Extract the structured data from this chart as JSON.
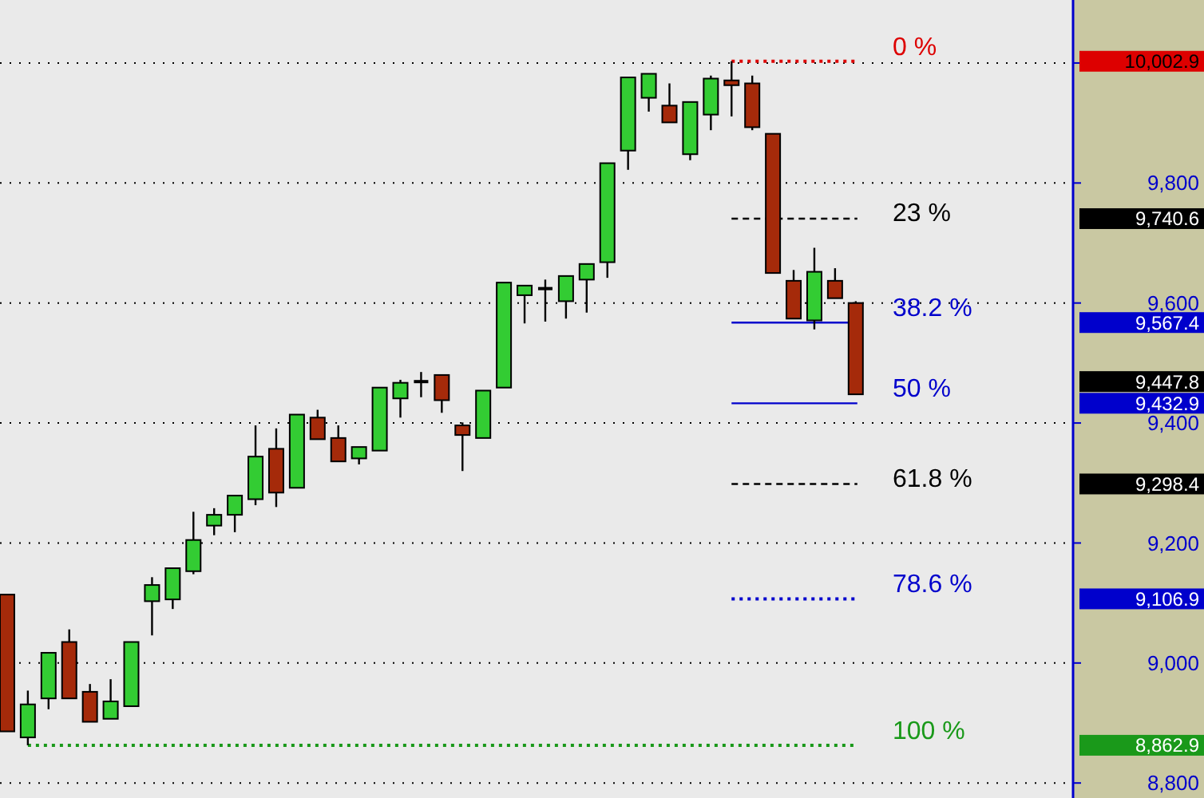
{
  "chart_data": {
    "type": "candlestick",
    "categories": [
      null,
      null,
      null,
      null,
      null,
      null,
      null,
      null,
      null,
      null,
      null,
      null,
      null,
      null,
      null,
      null,
      null,
      null,
      null,
      null,
      null,
      null,
      null,
      null,
      null,
      null,
      null,
      null,
      null,
      null,
      null,
      null,
      null,
      null,
      null,
      null,
      null,
      null,
      null,
      null,
      null,
      null,
      null,
      null,
      null,
      null,
      null,
      null,
      null,
      null,
      null,
      null
    ],
    "ohlc": [
      [
        9114,
        9114,
        8886,
        8886
      ],
      [
        8876,
        8954,
        8862.9,
        8931
      ],
      [
        8941,
        9017,
        8923,
        9017
      ],
      [
        9035,
        9056,
        8941,
        8941
      ],
      [
        8952,
        8965,
        8902,
        8902
      ],
      [
        8907,
        8973,
        8907,
        8936
      ],
      [
        8928,
        9035,
        8928,
        9035
      ],
      [
        9103,
        9143,
        9046,
        9130
      ],
      [
        9106,
        9158,
        9090,
        9158
      ],
      [
        9153,
        9252,
        9148,
        9205
      ],
      [
        9229,
        9258,
        9213,
        9247
      ],
      [
        9247,
        9279,
        9218,
        9279
      ],
      [
        9273,
        9396,
        9263,
        9344
      ],
      [
        9357,
        9391,
        9260,
        9284
      ],
      [
        9292,
        9414,
        9292,
        9414
      ],
      [
        9409,
        9422,
        9373,
        9373
      ],
      [
        9375,
        9396,
        9336,
        9336
      ],
      [
        9341,
        9360,
        9331,
        9360
      ],
      [
        9354,
        9459,
        9354,
        9459
      ],
      [
        9441,
        9472,
        9409,
        9467
      ],
      [
        9469,
        9485,
        9443,
        9469
      ],
      [
        9480,
        9480,
        9417,
        9438
      ],
      [
        9396,
        9401,
        9320,
        9380
      ],
      [
        9375,
        9454,
        9375,
        9454
      ],
      [
        9459,
        9634,
        9459,
        9634
      ],
      [
        9613,
        9629,
        9566,
        9629
      ],
      [
        9624,
        9639,
        9569,
        9624
      ],
      [
        9603,
        9645,
        9574,
        9645
      ],
      [
        9639,
        9665,
        9584,
        9665
      ],
      [
        9668,
        9833,
        9642,
        9833
      ],
      [
        9854,
        9976,
        9822,
        9976
      ],
      [
        9942,
        9982,
        9919,
        9982
      ],
      [
        9929,
        9966,
        9901,
        9901
      ],
      [
        9848,
        9935,
        9838,
        9935
      ],
      [
        9914,
        9979,
        9888,
        9974
      ],
      [
        9971,
        10002.9,
        9911,
        9963
      ],
      [
        9966,
        9979,
        9888,
        9893
      ],
      [
        9882,
        9882,
        9650,
        9650
      ],
      [
        9637,
        9655,
        9574,
        9574
      ],
      [
        9571,
        9692,
        9556,
        9652
      ],
      [
        9637,
        9658,
        9608,
        9608
      ],
      [
        9600,
        9603,
        9447.8,
        9447.8
      ],
      null,
      null,
      null,
      null,
      null,
      null,
      null,
      null,
      null,
      null
    ],
    "colors": [
      "#a52a0a",
      "#33cc33",
      "#33cc33",
      "#a52a0a",
      "#a52a0a",
      "#33cc33",
      "#33cc33",
      "#33cc33",
      "#33cc33",
      "#33cc33",
      "#33cc33",
      "#33cc33",
      "#33cc33",
      "#a52a0a",
      "#33cc33",
      "#a52a0a",
      "#a52a0a",
      "#33cc33",
      "#33cc33",
      "#33cc33",
      "#000000",
      "#a52a0a",
      "#a52a0a",
      "#33cc33",
      "#33cc33",
      "#33cc33",
      "#000000",
      "#33cc33",
      "#33cc33",
      "#33cc33",
      "#33cc33",
      "#33cc33",
      "#a52a0a",
      "#33cc33",
      "#33cc33",
      "#a52a0a",
      "#a52a0a",
      "#a52a0a",
      "#a52a0a",
      "#33cc33",
      "#a52a0a",
      "#a52a0a",
      null,
      null,
      null,
      null,
      null,
      null,
      null,
      null,
      null,
      null
    ],
    "ylim": [
      8775,
      10105
    ],
    "yticks": [
      {
        "value": 8800,
        "label": "8,800"
      },
      {
        "value": 9000,
        "label": "9,000"
      },
      {
        "value": 9200,
        "label": "9,200"
      },
      {
        "value": 9400,
        "label": "9,400"
      },
      {
        "value": 9600,
        "label": "9,600"
      },
      {
        "value": 9800,
        "label": "9,800"
      },
      {
        "value": 10000,
        "label": null
      }
    ],
    "grid": "y",
    "tick_labels": "y",
    "ref_lines": [
      {
        "axis": "y",
        "value": 10002.9,
        "color": "#dd0000",
        "line_style": "dotted"
      },
      {
        "axis": "y",
        "value": 9740.6,
        "color": "#000000",
        "line_style": "dashed"
      },
      {
        "axis": "y",
        "value": 9567.4,
        "color": "#0000cc",
        "line_style": "solid"
      },
      {
        "axis": "y",
        "value": 9432.9,
        "color": "#0000cc",
        "line_style": "solid"
      },
      {
        "axis": "y",
        "value": 9298.4,
        "color": "#000000",
        "line_style": "dashed"
      },
      {
        "axis": "y",
        "value": 9106.9,
        "color": "#0000cc",
        "line_style": "dotted"
      },
      {
        "axis": "y",
        "value": 8862.9,
        "color": "#1a991a",
        "line_style": "dotted"
      }
    ],
    "annotations": [
      "0 %",
      "23 %",
      "38.2 %",
      "50 %",
      "61.8 %",
      "78.6 %",
      "100 %",
      "10,002.9",
      "9,740.6",
      "9,567.4",
      "9,432.9",
      "9,298.4",
      "9,106.9",
      "8,862.9",
      "9,447.8"
    ]
  }
}
